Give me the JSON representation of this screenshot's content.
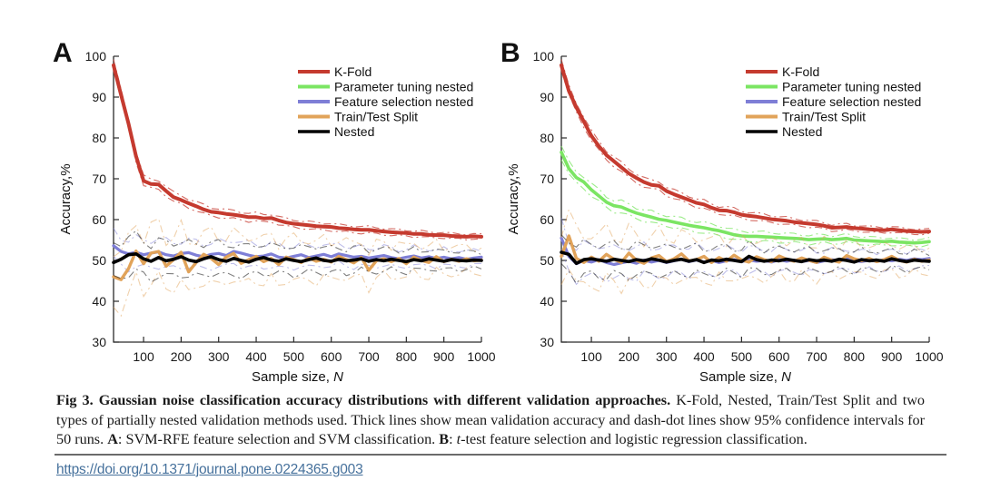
{
  "colors": {
    "red": "#c53a2f",
    "green": "#7be563",
    "blue": "#7e7ed6",
    "orange": "#e1a35a",
    "black": "#000000",
    "axis": "#2a2a2a",
    "link": "#46719c",
    "separator": "#6b6b6b"
  },
  "legend": [
    {
      "label": "K-Fold",
      "color": "red"
    },
    {
      "label": "Parameter tuning nested",
      "color": "green"
    },
    {
      "label": "Feature selection nested",
      "color": "blue"
    },
    {
      "label": "Train/Test Split",
      "color": "orange"
    },
    {
      "label": "Nested",
      "color": "black"
    }
  ],
  "chart_data": [
    {
      "type": "line",
      "panel_label": "A",
      "title": "",
      "xlabel": "Sample size, N",
      "xlabel_main": "Sample size, ",
      "xlabel_var": "N",
      "ylabel": "Accuracy,%",
      "xlim": [
        20,
        1000
      ],
      "ylim": [
        30,
        100
      ],
      "xticks": [
        100,
        200,
        300,
        400,
        500,
        600,
        700,
        800,
        900,
        1000
      ],
      "yticks": [
        30,
        40,
        50,
        60,
        70,
        80,
        90,
        100
      ],
      "grid": false,
      "legend_position": "top-right",
      "x": [
        20,
        40,
        60,
        80,
        100,
        120,
        140,
        160,
        180,
        200,
        220,
        240,
        260,
        280,
        300,
        320,
        340,
        360,
        380,
        400,
        420,
        440,
        460,
        480,
        500,
        520,
        540,
        560,
        580,
        600,
        620,
        640,
        660,
        680,
        700,
        720,
        740,
        760,
        780,
        800,
        820,
        840,
        860,
        880,
        900,
        920,
        940,
        960,
        980,
        1000
      ],
      "series": [
        {
          "name": "Parameter tuning nested",
          "color": "green",
          "width": 3.4,
          "ci": [
            0,
            0
          ],
          "values": [
            97.8,
            90.5,
            83.5,
            75.5,
            69.5,
            68.7,
            68.6,
            67.0,
            65.5,
            64.8,
            64.0,
            63.3,
            62.5,
            61.9,
            61.7,
            61.4,
            61.2,
            60.9,
            60.6,
            60.6,
            60.3,
            60.4,
            59.8,
            59.3,
            59.0,
            58.8,
            58.6,
            58.4,
            58.3,
            58.2,
            57.9,
            57.8,
            57.6,
            57.5,
            57.5,
            57.3,
            57.1,
            56.9,
            56.8,
            56.7,
            56.5,
            56.5,
            56.3,
            56.2,
            56.2,
            56.0,
            55.9,
            55.8,
            55.9,
            55.8
          ]
        },
        {
          "name": "Feature selection nested",
          "color": "blue",
          "width": 3.2,
          "ci": [
            3.5,
            1.8
          ],
          "values": [
            53.6,
            52.2,
            51.6,
            52.0,
            51.4,
            51.8,
            52.1,
            51.4,
            51.1,
            51.7,
            51.9,
            51.3,
            50.9,
            51.5,
            51.7,
            51.2,
            52.2,
            51.8,
            51.3,
            50.9,
            51.1,
            51.6,
            50.8,
            50.6,
            51.0,
            51.4,
            50.7,
            51.1,
            51.5,
            50.9,
            51.6,
            51.2,
            50.8,
            51.0,
            50.6,
            50.9,
            51.2,
            50.7,
            50.4,
            50.8,
            51.1,
            50.6,
            50.9,
            50.5,
            50.8,
            50.4,
            50.7,
            50.3,
            50.6,
            50.8
          ]
        },
        {
          "name": "Train/Test Split",
          "color": "orange",
          "width": 3.4,
          "ci": [
            7.0,
            3.0
          ],
          "values": [
            46.0,
            45.3,
            48.0,
            52.3,
            49.2,
            51.8,
            52.2,
            48.6,
            50.2,
            52.0,
            47.2,
            49.5,
            51.5,
            50.5,
            49.0,
            50.8,
            51.7,
            49.3,
            50.2,
            51.0,
            49.7,
            50.5,
            49.0,
            50.8,
            50.2,
            49.5,
            50.6,
            49.8,
            50.3,
            49.6,
            51.0,
            50.2,
            49.4,
            50.7,
            47.6,
            49.9,
            50.4,
            49.7,
            50.5,
            49.2,
            50.8,
            50.0,
            49.5,
            50.9,
            49.7,
            50.3,
            49.8,
            50.4,
            49.9,
            50.1
          ]
        },
        {
          "name": "K-Fold",
          "color": "red",
          "width": 4.0,
          "ci": [
            1.2,
            0.6
          ],
          "values": [
            97.8,
            90.5,
            83.5,
            75.5,
            69.5,
            68.7,
            68.6,
            67.0,
            65.5,
            64.8,
            64.0,
            63.3,
            62.5,
            61.9,
            61.7,
            61.4,
            61.2,
            60.9,
            60.6,
            60.6,
            60.3,
            60.4,
            59.8,
            59.3,
            59.0,
            58.8,
            58.6,
            58.4,
            58.3,
            58.2,
            57.9,
            57.8,
            57.6,
            57.5,
            57.5,
            57.3,
            57.1,
            56.9,
            56.8,
            56.7,
            56.5,
            56.5,
            56.3,
            56.2,
            56.2,
            56.0,
            55.9,
            55.8,
            55.9,
            55.8
          ]
        },
        {
          "name": "Nested",
          "color": "black",
          "width": 3.6,
          "ci": [
            4.5,
            2.0
          ],
          "values": [
            49.5,
            50.3,
            51.4,
            51.6,
            50.4,
            49.8,
            50.7,
            49.9,
            50.3,
            50.9,
            50.1,
            49.7,
            50.4,
            50.9,
            50.2,
            49.8,
            50.5,
            50.0,
            49.6,
            50.3,
            50.7,
            50.1,
            49.8,
            50.4,
            50.0,
            49.7,
            50.2,
            50.6,
            50.0,
            49.8,
            50.3,
            49.9,
            50.1,
            50.4,
            49.8,
            50.2,
            49.9,
            50.3,
            50.0,
            49.7,
            50.2,
            49.9,
            50.4,
            50.1,
            49.8,
            50.2,
            50.0,
            49.9,
            50.1,
            50.0
          ]
        }
      ]
    },
    {
      "type": "line",
      "panel_label": "B",
      "title": "",
      "xlabel": "Sample size, N",
      "xlabel_main": "Sample size, ",
      "xlabel_var": "N",
      "ylabel": "Accuracy,%",
      "xlim": [
        20,
        1000
      ],
      "ylim": [
        30,
        100
      ],
      "xticks": [
        100,
        200,
        300,
        400,
        500,
        600,
        700,
        800,
        900,
        1000
      ],
      "yticks": [
        30,
        40,
        50,
        60,
        70,
        80,
        90,
        100
      ],
      "grid": false,
      "legend_position": "top-right",
      "x": [
        20,
        40,
        60,
        80,
        100,
        120,
        140,
        160,
        180,
        200,
        220,
        240,
        260,
        280,
        300,
        320,
        340,
        360,
        380,
        400,
        420,
        440,
        460,
        480,
        500,
        520,
        540,
        560,
        580,
        600,
        620,
        640,
        660,
        680,
        700,
        720,
        740,
        760,
        780,
        800,
        820,
        840,
        860,
        880,
        900,
        920,
        940,
        960,
        980,
        1000
      ],
      "series": [
        {
          "name": "Parameter tuning nested",
          "color": "green",
          "width": 3.6,
          "ci": [
            1.5,
            0.8
          ],
          "values": [
            76.5,
            72.5,
            70.3,
            69.2,
            67.3,
            65.8,
            64.3,
            63.4,
            63.1,
            62.3,
            61.6,
            61.1,
            60.6,
            60.1,
            59.8,
            59.4,
            59.0,
            58.6,
            58.3,
            58.0,
            57.6,
            57.3,
            56.8,
            56.3,
            56.0,
            55.9,
            55.9,
            55.8,
            55.7,
            55.6,
            55.5,
            55.4,
            55.3,
            55.1,
            55.2,
            55.3,
            55.1,
            55.2,
            55.4,
            55.0,
            54.9,
            54.8,
            54.7,
            54.6,
            54.7,
            54.5,
            54.4,
            54.3,
            54.4,
            54.6
          ]
        },
        {
          "name": "Feature selection nested",
          "color": "blue",
          "width": 3.2,
          "ci": [
            4.0,
            2.0
          ],
          "values": [
            55.5,
            51.0,
            49.2,
            50.0,
            49.6,
            50.2,
            49.5,
            49.0,
            49.4,
            49.8,
            49.3,
            50.1,
            49.6,
            50.0,
            49.5,
            49.9,
            50.3,
            49.7,
            50.1,
            49.6,
            50.0,
            49.5,
            49.9,
            50.2,
            49.7,
            50.1,
            49.8,
            50.0,
            49.6,
            50.2,
            49.8,
            50.1,
            49.7,
            50.0,
            49.5,
            49.9,
            50.2,
            49.8,
            50.4,
            50.0,
            49.7,
            50.1,
            49.8,
            50.2,
            49.9,
            50.3,
            50.0,
            50.4,
            50.2,
            50.5
          ]
        },
        {
          "name": "Train/Test Split",
          "color": "orange",
          "width": 3.4,
          "ci": [
            6.5,
            3.0
          ],
          "values": [
            51.0,
            56.0,
            50.5,
            49.5,
            50.8,
            49.8,
            51.5,
            50.3,
            49.5,
            51.8,
            50.0,
            49.3,
            50.6,
            51.2,
            49.7,
            50.4,
            51.6,
            49.9,
            50.2,
            51.0,
            49.5,
            50.7,
            49.8,
            51.3,
            50.1,
            49.6,
            50.9,
            50.2,
            49.7,
            51.1,
            50.3,
            49.8,
            50.6,
            50.0,
            49.5,
            50.8,
            50.1,
            49.6,
            51.2,
            50.4,
            49.9,
            50.5,
            49.7,
            50.2,
            51.0,
            50.0,
            49.6,
            50.3,
            49.8,
            50.1
          ]
        },
        {
          "name": "K-Fold",
          "color": "red",
          "width": 4.0,
          "ci": [
            1.2,
            0.6
          ],
          "values": [
            97.8,
            91.5,
            87.5,
            84.0,
            80.5,
            78.0,
            75.8,
            74.3,
            72.8,
            71.3,
            70.2,
            69.2,
            68.5,
            68.3,
            67.0,
            66.2,
            65.5,
            64.8,
            64.1,
            63.7,
            62.9,
            62.3,
            62.2,
            61.8,
            61.2,
            60.9,
            60.7,
            60.4,
            60.1,
            59.9,
            59.7,
            59.4,
            59.2,
            59.0,
            58.8,
            58.5,
            58.0,
            58.1,
            58.2,
            57.9,
            57.8,
            57.6,
            57.5,
            57.4,
            57.6,
            57.4,
            57.2,
            57.1,
            57.0,
            57.1
          ]
        },
        {
          "name": "Nested",
          "color": "black",
          "width": 3.6,
          "ci": [
            4.0,
            2.0
          ],
          "values": [
            52.0,
            51.5,
            49.3,
            50.2,
            50.4,
            50.1,
            49.8,
            50.3,
            50.0,
            49.7,
            50.2,
            49.9,
            50.4,
            50.1,
            49.6,
            50.0,
            50.3,
            49.8,
            50.2,
            49.5,
            50.1,
            49.9,
            50.3,
            50.0,
            49.7,
            51.0,
            50.2,
            49.8,
            50.1,
            49.9,
            50.3,
            50.0,
            49.7,
            50.2,
            49.9,
            50.1,
            49.8,
            50.3,
            50.0,
            49.6,
            50.2,
            49.9,
            50.1,
            49.8,
            50.4,
            50.0,
            49.7,
            50.1,
            49.9,
            49.8
          ]
        }
      ]
    }
  ],
  "caption": {
    "title": "Fig 3. Gaussian noise classification accuracy distributions with different validation approaches.",
    "body": " K-Fold, Nested, Train/Test Split and two types of partially nested validation methods used. Thick lines show mean validation accuracy and dash-dot lines show 95% confidence intervals for 50 runs. ",
    "a_label": "A",
    "a_text": ": SVM-RFE feature selection and SVM classification. ",
    "b_label": "B",
    "b_colon": ": ",
    "b_italic": "t",
    "b_text": "-test feature selection and logistic regression classification."
  },
  "link": {
    "url": "https://doi.org/10.1371/journal.pone.0224365.g003"
  }
}
